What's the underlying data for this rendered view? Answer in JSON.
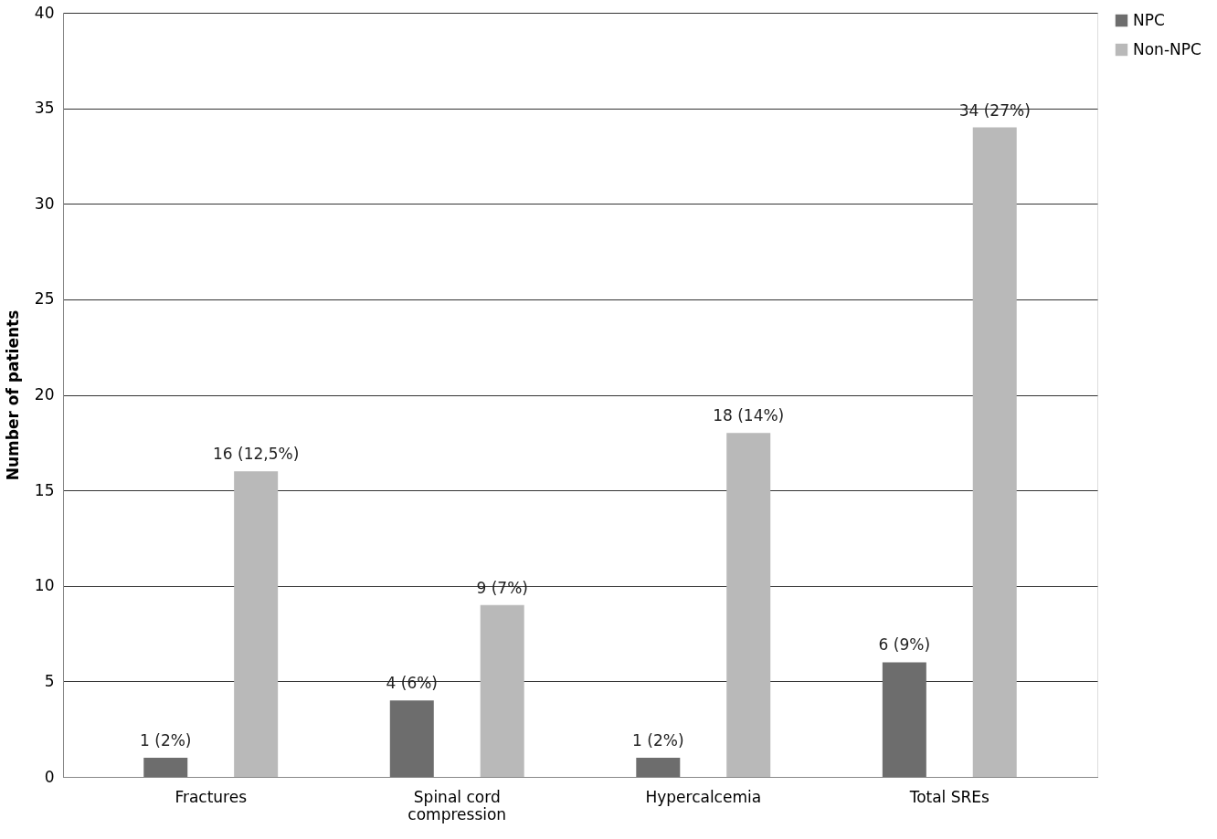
{
  "chart_data": {
    "type": "bar",
    "ylabel": "Number of patients",
    "categories": [
      "Fractures",
      "Spinal cord compression",
      "Hypercalcemia",
      "Total SREs"
    ],
    "series": [
      {
        "name": "NPC",
        "color": "#6d6d6d",
        "values": [
          1,
          4,
          1,
          6
        ],
        "value_labels": [
          "1 (2%)",
          "4 (6%)",
          "1 (2%)",
          "6 (9%)"
        ]
      },
      {
        "name": "Non-NPC",
        "color": "#b9b9b9",
        "values": [
          16,
          9,
          18,
          34
        ],
        "value_labels": [
          "16 (12,5%)",
          "9 (7%)",
          "18 (14%)",
          "34 (27%)"
        ]
      }
    ],
    "ylim": [
      0,
      40
    ],
    "yticks": [
      0,
      5,
      10,
      15,
      20,
      25,
      30,
      35,
      40
    ],
    "grid": "y",
    "legend": "right"
  }
}
